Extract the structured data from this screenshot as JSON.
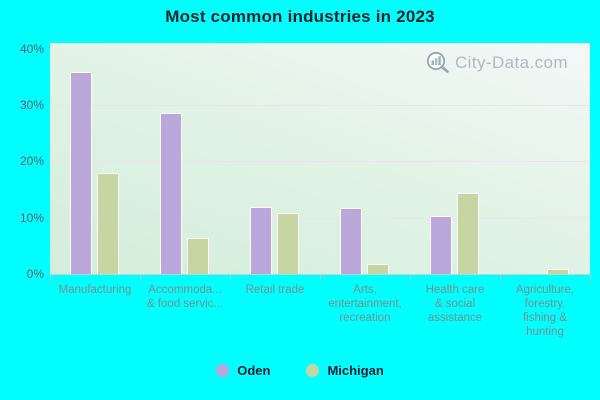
{
  "title": "Most common industries in 2023",
  "watermark": "City-Data.com",
  "colors": {
    "background": "#00ffff",
    "oden_bar": "#bca7da",
    "michigan_bar": "#c5d6a2",
    "plot_gradient_top": "#f3f8f8",
    "plot_gradient_bottom": "#d2eeda",
    "gridline": "#e9e2ef",
    "axis_line": "#c9cfcf",
    "title_text": "#15232b",
    "y_label_text": "#5d5d68",
    "x_label_text": "#7f8c8c",
    "legend_text": "#1c1c2e",
    "watermark_text": "#b2b9bf"
  },
  "y_axis": {
    "tick_labels": [
      "40%",
      "30%",
      "20%",
      "10%",
      "0%"
    ],
    "tick_values": [
      40,
      30,
      20,
      10,
      0
    ]
  },
  "x_axis": {
    "display_labels": [
      "Manufacturing",
      "Accommoda...\n& food servic...",
      "Retail trade",
      "Arts,\nentertainment,\nrecreation",
      "Health care\n& social\nassistance",
      "Agriculture,\nforestry,\nfishing &\nhunting"
    ]
  },
  "legend": {
    "items": [
      {
        "label": "Oden",
        "color": "#bca7da"
      },
      {
        "label": "Michigan",
        "color": "#c5d6a2"
      }
    ]
  },
  "chart_data": {
    "type": "bar",
    "title": "Most common industries in 2023",
    "categories": [
      "Manufacturing",
      "Accommodation & food services",
      "Retail trade",
      "Arts, entertainment, recreation",
      "Health care & social assistance",
      "Agriculture, forestry, fishing & hunting"
    ],
    "series": [
      {
        "name": "Oden",
        "color": "#bca7da",
        "values": [
          35.8,
          28.6,
          11.9,
          11.8,
          10.3,
          0
        ]
      },
      {
        "name": "Michigan",
        "color": "#c5d6a2",
        "values": [
          18.0,
          6.4,
          10.8,
          1.8,
          14.3,
          0.9
        ]
      }
    ],
    "ylim": [
      0,
      40
    ],
    "y_tick_step": 10,
    "xlabel": "",
    "ylabel": "",
    "grid": true,
    "legend_position": "bottom",
    "value_unit": "%"
  }
}
